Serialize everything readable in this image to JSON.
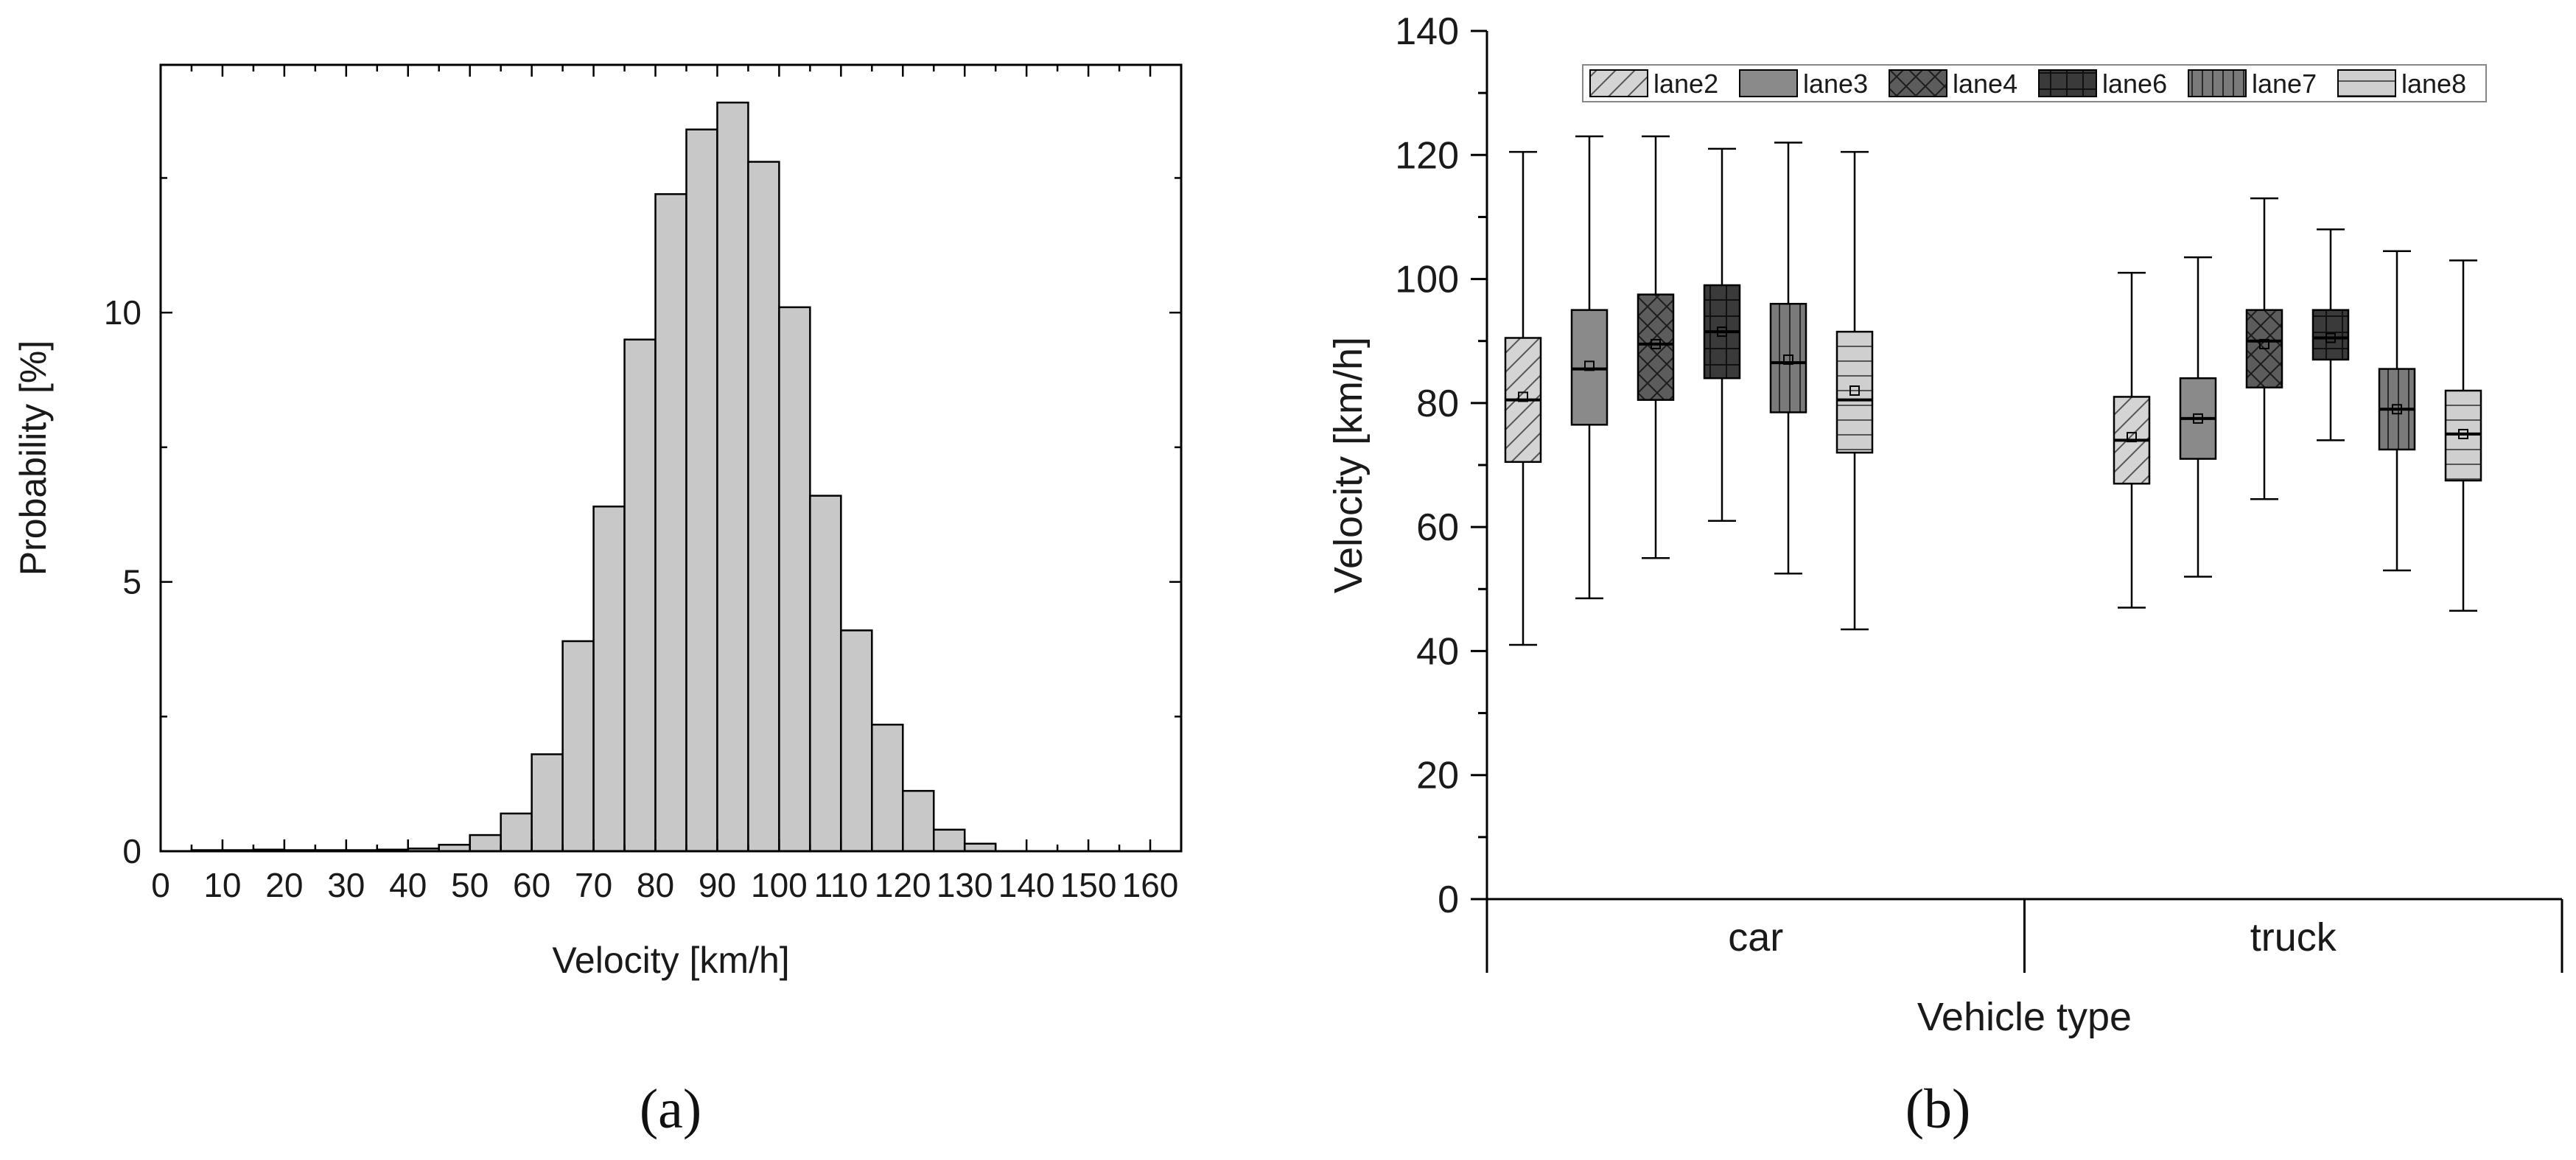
{
  "chart_data": [
    {
      "type": "bar",
      "panel": "a",
      "panel_label": "(a)",
      "title": "",
      "xlabel": "Velocity [km/h]",
      "ylabel": "Probability [%]",
      "xlim": [
        0,
        165
      ],
      "ylim": [
        0,
        14.6
      ],
      "x_ticks": [
        "0",
        "10",
        "20",
        "30",
        "40",
        "50",
        "60",
        "70",
        "80",
        "90",
        "100",
        "110",
        "120",
        "130",
        "140",
        "150",
        "160"
      ],
      "y_ticks": [
        "0",
        "5",
        "10"
      ],
      "bin_width": 5,
      "bins_start": [
        5,
        10,
        15,
        20,
        25,
        30,
        35,
        40,
        45,
        50,
        55,
        60,
        65,
        70,
        75,
        80,
        85,
        90,
        95,
        100,
        105,
        110,
        115,
        120,
        125,
        130
      ],
      "values": [
        0.02,
        0.02,
        0.03,
        0.02,
        0.02,
        0.02,
        0.03,
        0.05,
        0.12,
        0.3,
        0.7,
        1.8,
        3.9,
        6.4,
        9.5,
        12.2,
        13.4,
        13.9,
        12.8,
        10.1,
        6.6,
        4.1,
        2.35,
        1.12,
        0.4,
        0.14
      ]
    },
    {
      "type": "box",
      "panel": "b",
      "panel_label": "(b)",
      "title": "",
      "xlabel": "Vehicle type",
      "ylabel": "Velocity [km/h]",
      "ylim": [
        0,
        140
      ],
      "y_ticks": [
        "0",
        "20",
        "40",
        "60",
        "80",
        "100",
        "120",
        "140"
      ],
      "categories": [
        "car",
        "truck"
      ],
      "legend": [
        "lane2",
        "lane3",
        "lane4",
        "lane6",
        "lane7",
        "lane8"
      ],
      "legend_position": "top",
      "series": [
        {
          "name": "lane2",
          "fill": "#d4d4d4",
          "pattern": "diag",
          "car": {
            "min": 41.0,
            "q1": 70.5,
            "median": 80.5,
            "mean": 81.0,
            "q3": 90.5,
            "max": 120.5
          },
          "truck": {
            "min": 47.0,
            "q1": 67.0,
            "median": 74.0,
            "mean": 74.5,
            "q3": 81.0,
            "max": 101.0
          }
        },
        {
          "name": "lane3",
          "fill": "#8a8a8a",
          "pattern": "none",
          "car": {
            "min": 48.5,
            "q1": 76.5,
            "median": 85.5,
            "mean": 86.0,
            "q3": 95.0,
            "max": 123.0
          },
          "truck": {
            "min": 52.0,
            "q1": 71.0,
            "median": 77.5,
            "mean": 77.5,
            "q3": 84.0,
            "max": 103.5
          }
        },
        {
          "name": "lane4",
          "fill": "#5c5c5c",
          "pattern": "cross",
          "car": {
            "min": 55.0,
            "q1": 80.5,
            "median": 89.5,
            "mean": 89.5,
            "q3": 97.5,
            "max": 123.0
          },
          "truck": {
            "min": 64.5,
            "q1": 82.5,
            "median": 90.0,
            "mean": 89.5,
            "q3": 95.0,
            "max": 113.0
          }
        },
        {
          "name": "lane6",
          "fill": "#3a3a3a",
          "pattern": "grid",
          "car": {
            "min": 61.0,
            "q1": 84.0,
            "median": 91.5,
            "mean": 91.5,
            "q3": 99.0,
            "max": 121.0
          },
          "truck": {
            "min": 74.0,
            "q1": 87.0,
            "median": 90.5,
            "mean": 90.5,
            "q3": 95.0,
            "max": 108.0
          }
        },
        {
          "name": "lane7",
          "fill": "#7a7a7a",
          "pattern": "vert",
          "car": {
            "min": 52.5,
            "q1": 78.5,
            "median": 86.5,
            "mean": 87.0,
            "q3": 96.0,
            "max": 122.0
          },
          "truck": {
            "min": 53.0,
            "q1": 72.5,
            "median": 79.0,
            "mean": 79.0,
            "q3": 85.5,
            "max": 104.5
          }
        },
        {
          "name": "lane8",
          "fill": "#cfcfcf",
          "pattern": "horiz",
          "car": {
            "min": 43.5,
            "q1": 72.0,
            "median": 80.5,
            "mean": 82.0,
            "q3": 91.5,
            "max": 120.5
          },
          "truck": {
            "min": 46.5,
            "q1": 67.5,
            "median": 75.0,
            "mean": 75.0,
            "q3": 82.0,
            "max": 103.0
          }
        }
      ]
    }
  ],
  "colors": {
    "axis": "#000000",
    "hist_fill": "#c8c8c8",
    "hist_stroke": "#000000"
  }
}
